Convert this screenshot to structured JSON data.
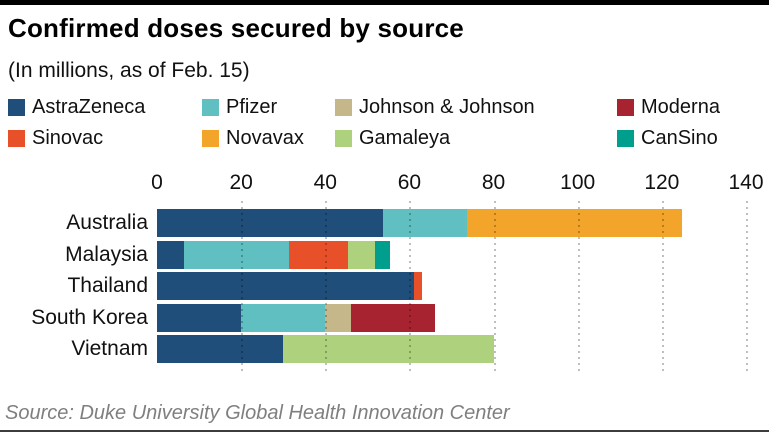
{
  "header": {
    "title": "Confirmed doses secured by source",
    "subtitle": "(In millions, as of Feb. 15)"
  },
  "chart_data": {
    "type": "bar",
    "orientation": "horizontal-stacked",
    "title": "Confirmed doses secured by source",
    "unit": "millions of doses",
    "categories": [
      "Australia",
      "Malaysia",
      "Thailand",
      "South Korea",
      "Vietnam"
    ],
    "series": [
      {
        "name": "AstraZeneca",
        "color": "#1f4e7a",
        "values": [
          53.8,
          6.4,
          61,
          20,
          30
        ]
      },
      {
        "name": "Pfizer",
        "color": "#5fbfc1",
        "values": [
          20,
          25,
          0,
          20,
          0
        ]
      },
      {
        "name": "Johnson & Johnson",
        "color": "#c6b78a",
        "values": [
          0,
          0,
          0,
          6,
          0
        ]
      },
      {
        "name": "Moderna",
        "color": "#a6232f",
        "values": [
          0,
          0,
          0,
          20,
          0
        ]
      },
      {
        "name": "Sinovac",
        "color": "#e8502a",
        "values": [
          0,
          14,
          2,
          0,
          0
        ]
      },
      {
        "name": "Novavax",
        "color": "#f2a52a",
        "values": [
          51,
          0,
          0,
          0,
          0
        ]
      },
      {
        "name": "Gamaleya",
        "color": "#aed17e",
        "values": [
          0,
          6.4,
          0,
          0,
          50
        ]
      },
      {
        "name": "CanSino",
        "color": "#009e8c",
        "values": [
          0,
          3.5,
          0,
          0,
          0
        ]
      }
    ],
    "x_ticks": [
      0,
      20,
      40,
      60,
      80,
      100,
      120,
      140
    ],
    "xlim": [
      0,
      140
    ],
    "grid": "dotted-vertical",
    "legend_position": "top"
  },
  "footer": {
    "source": "Source: Duke University Global Health Innovation Center"
  }
}
